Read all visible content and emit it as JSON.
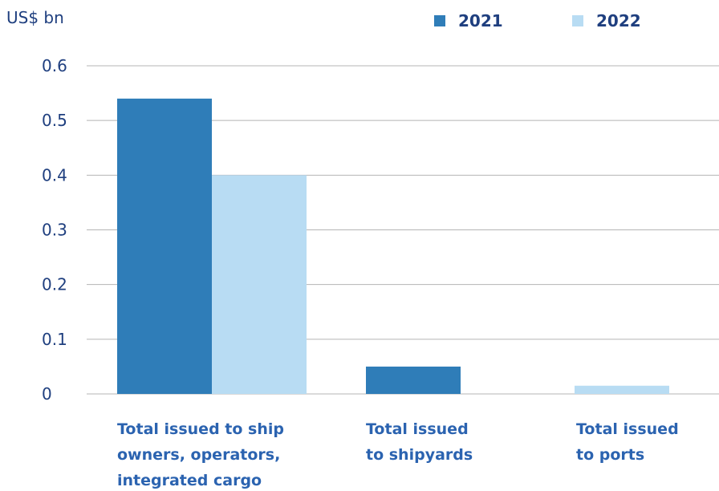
{
  "chart_data": {
    "type": "bar",
    "ylabel": "US$ bn",
    "ylim": [
      0,
      0.6
    ],
    "yticks": [
      "0",
      "0.1",
      "0.2",
      "0.3",
      "0.4",
      "0.5",
      "0.6"
    ],
    "categories": [
      [
        "Total issued to ship",
        "owners, operators,",
        "integrated cargo"
      ],
      [
        "Total issued",
        "to shipyards"
      ],
      [
        "Total issued",
        "to ports"
      ]
    ],
    "series": [
      {
        "name": "2021",
        "color": "#2f7db8",
        "values": [
          0.54,
          0.05,
          0
        ]
      },
      {
        "name": "2022",
        "color": "#b8dcf3",
        "values": [
          0.4,
          0,
          0.015
        ]
      }
    ],
    "legend_position": "top-right",
    "grid": true
  }
}
